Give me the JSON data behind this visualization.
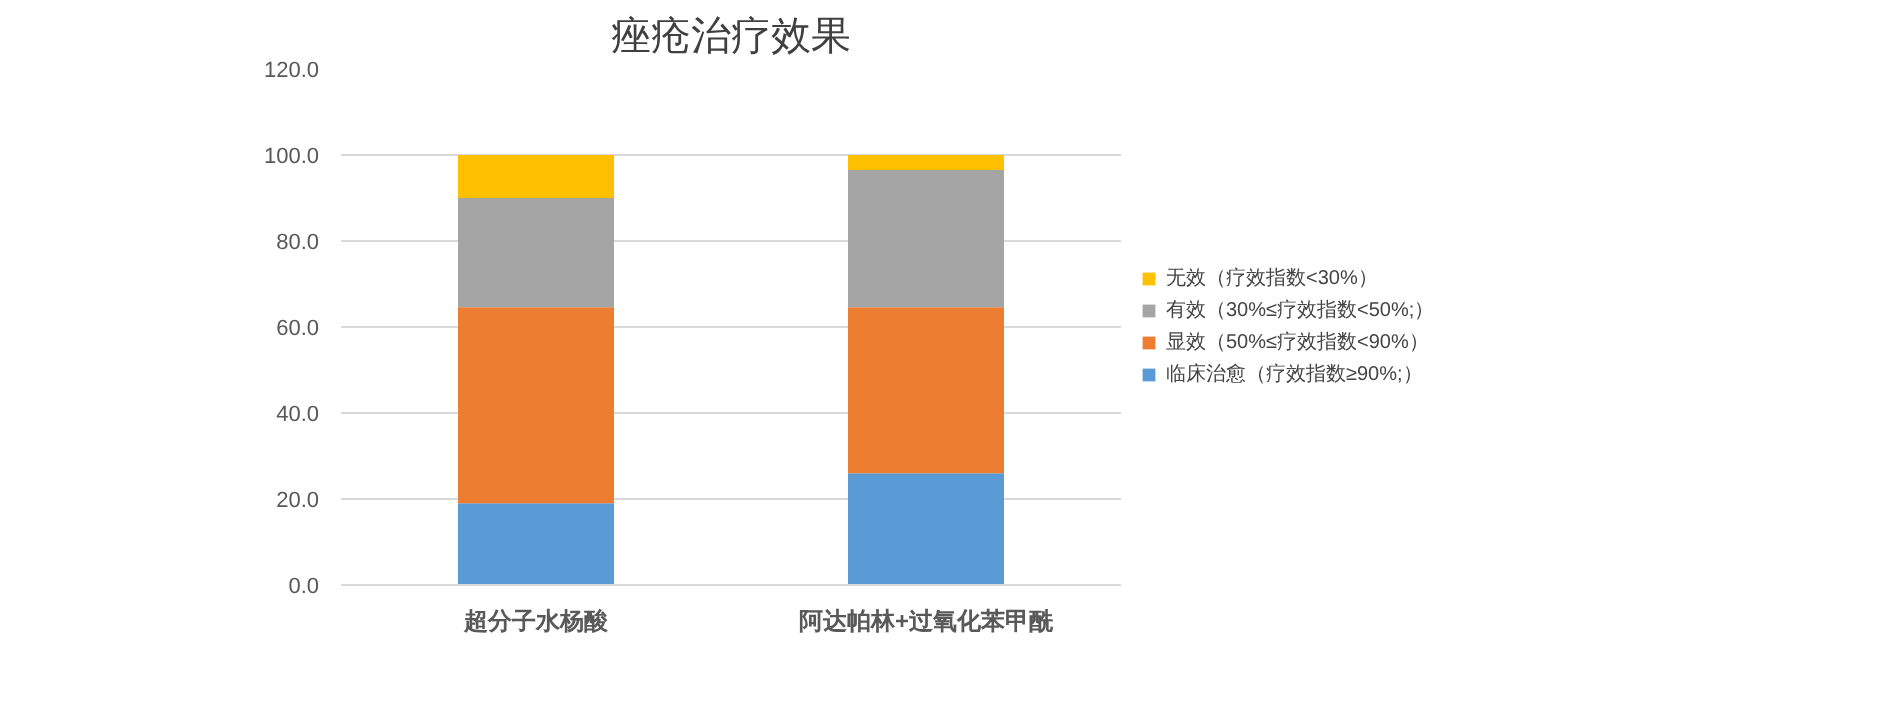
{
  "chart_data": {
    "type": "bar",
    "title": "痤疮治疗效果",
    "stacked": true,
    "categories": [
      "超分子水杨酸",
      "阿达帕林+过氧化苯甲酰"
    ],
    "series": [
      {
        "name": "临床治愈（疗效指数≥90%;）",
        "color": "#5b9bd5",
        "values": [
          19.0,
          26.0
        ]
      },
      {
        "name": "显效（50%≤疗效指数<90%）",
        "color": "#ed7d31",
        "values": [
          45.6,
          38.6
        ]
      },
      {
        "name": "有效（30%≤疗效指数<50%;）",
        "color": "#a5a5a5",
        "values": [
          25.4,
          31.9
        ]
      },
      {
        "name": "无效（疗效指数<30%）",
        "color": "#ffc000",
        "values": [
          10.0,
          3.5
        ]
      }
    ],
    "ylim": [
      0,
      120
    ],
    "yticks": [
      {
        "value": 0,
        "label": "0.0"
      },
      {
        "value": 20,
        "label": "20.0"
      },
      {
        "value": 40,
        "label": "40.0"
      },
      {
        "value": 60,
        "label": "60.0"
      },
      {
        "value": 80,
        "label": "80.0"
      },
      {
        "value": 100,
        "label": "100.0"
      },
      {
        "value": 120,
        "label": "120.0"
      }
    ],
    "grid": "y",
    "legend": "right"
  }
}
